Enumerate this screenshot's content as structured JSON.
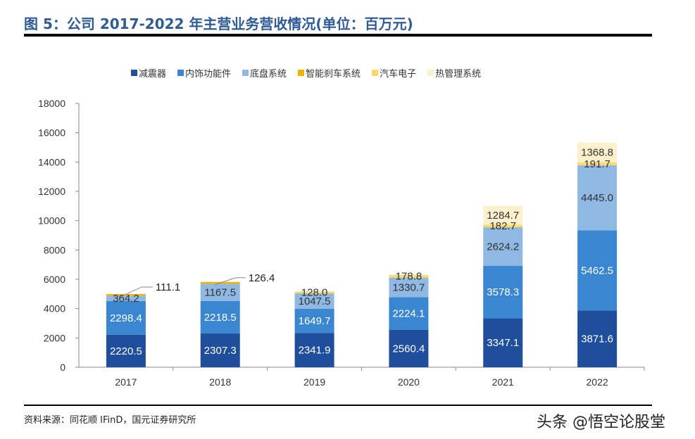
{
  "title": "图 5：公司 2017-2022 年主营业务营收情况(单位：百万元)",
  "source": "资料来源：同花顺 IFinD，国元证券研究所",
  "watermark": "头条 @悟空论股堂",
  "chart_data": {
    "type": "bar",
    "stacked": true,
    "title": "",
    "xlabel": "",
    "ylabel": "",
    "ylim": [
      0,
      18000
    ],
    "yticks": [
      0,
      2000,
      4000,
      6000,
      8000,
      10000,
      12000,
      14000,
      16000,
      18000
    ],
    "grid": false,
    "legend_position": "top",
    "categories": [
      "2017",
      "2018",
      "2019",
      "2020",
      "2021",
      "2022"
    ],
    "series": [
      {
        "name": "减震器",
        "color": "#1F4E9C",
        "values": [
          2220.5,
          2307.3,
          2341.9,
          2560.4,
          3347.1,
          3871.6
        ]
      },
      {
        "name": "内饰功能件",
        "color": "#3A86D1",
        "values": [
          2298.4,
          2218.5,
          1649.7,
          2224.1,
          3578.3,
          5462.5
        ]
      },
      {
        "name": "底盘系统",
        "color": "#8FB8E3",
        "values": [
          364.2,
          1167.5,
          1047.5,
          1330.7,
          2624.2,
          4445.0
        ]
      },
      {
        "name": "智能刹车系统",
        "color": "#F2B300",
        "values": [
          111.1,
          126.4,
          null,
          null,
          null,
          null
        ]
      },
      {
        "name": "汽车电子",
        "color": "#FFD966",
        "values": [
          null,
          null,
          128.0,
          178.8,
          182.7,
          191.7
        ]
      },
      {
        "name": "热管理系统",
        "color": "#FDF0CC",
        "values": [
          null,
          null,
          null,
          null,
          1284.7,
          1368.8
        ]
      }
    ]
  }
}
